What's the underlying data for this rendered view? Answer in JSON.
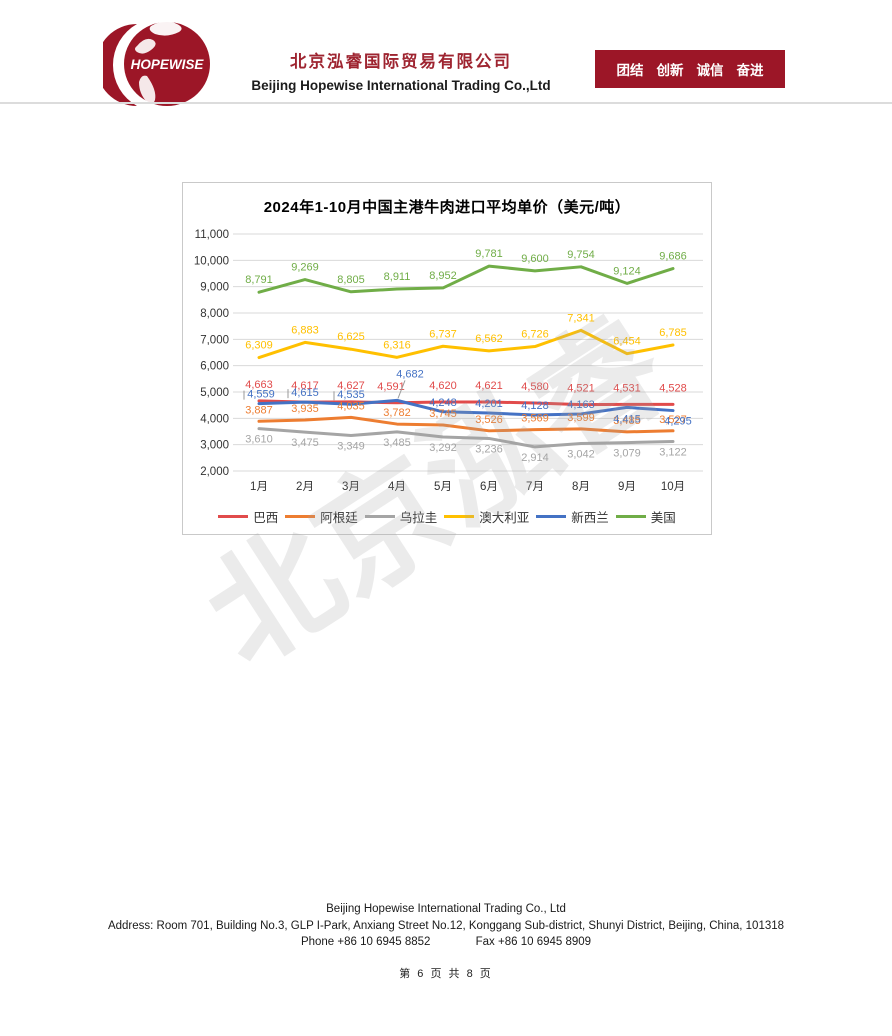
{
  "header": {
    "logo_text": "HOPEWISE",
    "company_name_zh": "北京泓睿国际贸易有限公司",
    "company_name_en": "Beijing Hopewise International Trading Co.,Ltd",
    "banner_values": [
      "团结",
      "创新",
      "诚信",
      "奋进"
    ]
  },
  "watermark": "北京泓睿",
  "chart_data": {
    "type": "line",
    "title": "2024年1-10月中国主港牛肉进口平均单价（美元/吨）",
    "categories": [
      "1月",
      "2月",
      "3月",
      "4月",
      "5月",
      "6月",
      "7月",
      "8月",
      "9月",
      "10月"
    ],
    "series": [
      {
        "name": "巴西",
        "color": "#E14B4B",
        "values": [
          4663,
          4617,
          4627,
          4591,
          4620,
          4621,
          4580,
          4521,
          4531,
          4528
        ]
      },
      {
        "name": "阿根廷",
        "color": "#ED7D31",
        "values": [
          3887,
          3935,
          4035,
          3782,
          3745,
          3526,
          3569,
          3599,
          3485,
          3527
        ]
      },
      {
        "name": "乌拉圭",
        "color": "#A5A5A5",
        "values": [
          3610,
          3475,
          3349,
          3485,
          3292,
          3236,
          2914,
          3042,
          3079,
          3122
        ]
      },
      {
        "name": "澳大利亚",
        "color": "#FFC000",
        "values": [
          6309,
          6883,
          6625,
          6316,
          6737,
          6562,
          6726,
          7341,
          6454,
          6785
        ]
      },
      {
        "name": "新西兰",
        "color": "#4472C4",
        "values": [
          4559,
          4615,
          4535,
          4682,
          4248,
          4201,
          4128,
          4163,
          4415,
          4295
        ]
      },
      {
        "name": "美国",
        "color": "#70AD47",
        "values": [
          8791,
          9269,
          8805,
          8911,
          8952,
          9781,
          9600,
          9754,
          9124,
          9686
        ]
      }
    ],
    "y_ticks": [
      "11,000",
      "10,000",
      "9,000",
      "8,000",
      "7,000",
      "6,000",
      "5,000",
      "4,000",
      "3,000",
      "2,000"
    ],
    "ylim": [
      2000,
      11000
    ],
    "y_step": 1000,
    "grid": true,
    "legend_position": "bottom"
  },
  "footer": {
    "company": "Beijing Hopewise International Trading Co., Ltd",
    "address": "Address: Room 701, Building No.3, GLP I-Park, Anxiang Street No.12, Konggang Sub-district, Shunyi District, Beijing, China, 101318",
    "phone": "Phone +86 10 6945 8852",
    "fax": "Fax +86 10 6945 8909"
  },
  "page_info": "第 6 页 共 8 页"
}
